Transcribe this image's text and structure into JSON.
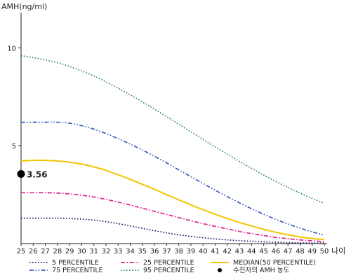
{
  "chart_data": {
    "type": "line",
    "ylabel": "AMH(ng/ml)",
    "xlabel": "나이",
    "x": [
      25,
      26,
      27,
      28,
      29,
      30,
      31,
      32,
      33,
      34,
      35,
      36,
      37,
      38,
      39,
      40,
      41,
      42,
      43,
      44,
      45,
      46,
      47,
      48,
      49,
      50
    ],
    "xlim": [
      25,
      50
    ],
    "ylim": [
      0,
      11.8
    ],
    "yticks": [
      5,
      10
    ],
    "grid": false,
    "legend_position": "bottom",
    "series": [
      {
        "name": "5 PERCENTILE",
        "color": "#1a1a6e",
        "dash": "dotted",
        "values": [
          1.3,
          1.3,
          1.3,
          1.3,
          1.28,
          1.25,
          1.2,
          1.12,
          1.02,
          0.9,
          0.78,
          0.66,
          0.55,
          0.45,
          0.37,
          0.3,
          0.24,
          0.19,
          0.15,
          0.12,
          0.09,
          0.07,
          0.05,
          0.04,
          0.03,
          0.03
        ]
      },
      {
        "name": "25 PERCENTILE",
        "color": "#e0208a",
        "dash": "dashdot",
        "values": [
          2.6,
          2.6,
          2.6,
          2.58,
          2.54,
          2.47,
          2.38,
          2.26,
          2.12,
          1.97,
          1.81,
          1.65,
          1.49,
          1.33,
          1.17,
          1.02,
          0.88,
          0.75,
          0.62,
          0.51,
          0.41,
          0.32,
          0.25,
          0.19,
          0.14,
          0.1
        ]
      },
      {
        "name": "MEDIAN(50 PERCENTILE)",
        "color": "#f2c400",
        "dash": "solid",
        "values": [
          4.22,
          4.25,
          4.25,
          4.22,
          4.16,
          4.06,
          3.92,
          3.74,
          3.52,
          3.28,
          3.03,
          2.77,
          2.5,
          2.24,
          1.98,
          1.73,
          1.5,
          1.28,
          1.08,
          0.9,
          0.73,
          0.58,
          0.45,
          0.34,
          0.26,
          0.2
        ]
      },
      {
        "name": "75 PERCENTILE",
        "color": "#3a5fc0",
        "dash": "dashdotdot",
        "values": [
          6.2,
          6.2,
          6.2,
          6.2,
          6.15,
          6.02,
          5.85,
          5.62,
          5.36,
          5.08,
          4.78,
          4.46,
          4.12,
          3.77,
          3.42,
          3.07,
          2.73,
          2.4,
          2.08,
          1.78,
          1.5,
          1.24,
          1.0,
          0.79,
          0.6,
          0.44
        ]
      },
      {
        "name": "95 PERCENTILE",
        "color": "#2e8b57",
        "dash": "dotted",
        "values": [
          9.6,
          9.5,
          9.38,
          9.24,
          9.05,
          8.82,
          8.56,
          8.26,
          7.94,
          7.6,
          7.24,
          6.87,
          6.49,
          6.1,
          5.71,
          5.32,
          4.94,
          4.57,
          4.2,
          3.85,
          3.5,
          3.18,
          2.87,
          2.58,
          2.31,
          2.06
        ]
      }
    ],
    "marker": {
      "name": "수진자의 AMH 농도",
      "x": 25,
      "y": 3.56,
      "label": "3.56",
      "color": "#000000"
    },
    "legend_order": [
      "5 PERCENTILE",
      "25 PERCENTILE",
      "MEDIAN(50 PERCENTILE)",
      "75 PERCENTILE",
      "95 PERCENTILE",
      "수진자의 AMH 농도"
    ]
  }
}
